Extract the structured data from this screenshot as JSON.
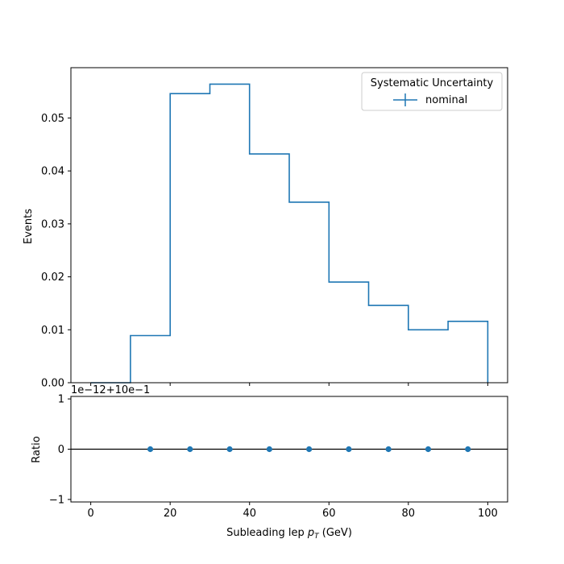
{
  "colors": {
    "series": "#1f77b4",
    "axis": "#000000",
    "reference_line": "#000000"
  },
  "chart_data": [
    {
      "type": "histogram",
      "panel": "main",
      "ylabel": "Events",
      "xlim": [
        -5,
        105
      ],
      "ylim": [
        0,
        0.0595
      ],
      "yticks": [
        0.0,
        0.01,
        0.02,
        0.03,
        0.04,
        0.05
      ],
      "ytick_labels": [
        "0.00",
        "0.01",
        "0.02",
        "0.03",
        "0.04",
        "0.05"
      ],
      "bin_edges": [
        0,
        10,
        20,
        30,
        40,
        50,
        60,
        70,
        80,
        90,
        100
      ],
      "series": [
        {
          "name": "nominal",
          "values": [
            0.0,
            0.0089,
            0.0546,
            0.0564,
            0.0432,
            0.0341,
            0.019,
            0.0146,
            0.01,
            0.0116
          ]
        }
      ],
      "legend": {
        "title": "Systematic Uncertainty",
        "entries": [
          "nominal"
        ],
        "placement": "top-right"
      }
    },
    {
      "type": "scatter",
      "panel": "ratio",
      "xlabel_text": "Subleading lep ",
      "xlabel_math_main": "p",
      "xlabel_math_sub": "T",
      "xlabel_unit": " (GeV)",
      "ylabel": "Ratio",
      "xlim": [
        -5,
        105
      ],
      "ylim": [
        -1.05,
        1.05
      ],
      "xticks": [
        0,
        20,
        40,
        60,
        80,
        100
      ],
      "xtick_labels": [
        "0",
        "20",
        "40",
        "60",
        "80",
        "100"
      ],
      "yticks": [
        -1,
        0,
        1
      ],
      "ytick_labels": [
        "−1",
        "0",
        "1"
      ],
      "offset_label": "1e−12+10e−1",
      "reference_line_y": 0,
      "x": [
        15,
        25,
        35,
        45,
        55,
        65,
        75,
        85,
        95
      ],
      "y": [
        0,
        0,
        0,
        0,
        0,
        0,
        0,
        0,
        0
      ]
    }
  ]
}
